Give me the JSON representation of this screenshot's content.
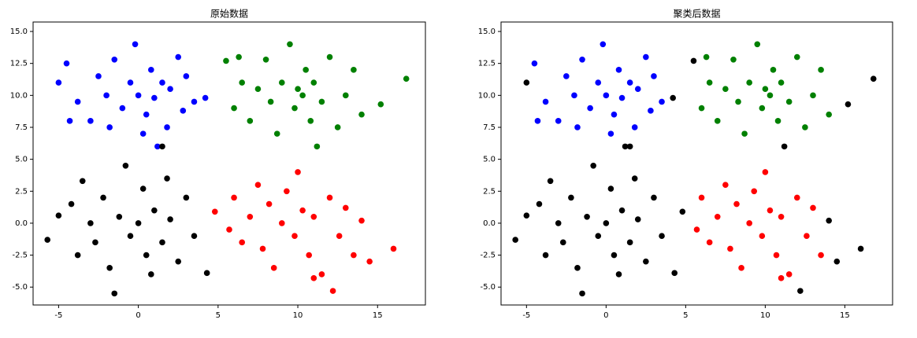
{
  "chart_data": [
    {
      "type": "scatter",
      "title": "原始数据",
      "xlim": [
        -6.6,
        18.0
      ],
      "ylim": [
        -6.4,
        15.74
      ],
      "xticks": [
        -5,
        0,
        5,
        10,
        15
      ],
      "yticks": [
        {
          "value": -5,
          "label": "-5.0"
        },
        {
          "value": -2.5,
          "label": "-2.5"
        },
        {
          "value": 0,
          "label": "0.0"
        },
        {
          "value": 2.5,
          "label": "2.5"
        },
        {
          "value": 5,
          "label": "5.0"
        },
        {
          "value": 7.5,
          "label": "7.5"
        },
        {
          "value": 10,
          "label": "10.0"
        },
        {
          "value": 12.5,
          "label": "12.5"
        },
        {
          "value": 15,
          "label": "15.0"
        }
      ],
      "series": [
        {
          "color": "#0000ff",
          "x": [
            -5,
            -4.5,
            -4.3,
            -3.8,
            -3,
            -2.5,
            -2,
            -1.5,
            -1,
            -0.5,
            0,
            0.5,
            0.8,
            1,
            1.5,
            1.8,
            2,
            2.5,
            2.8,
            3,
            3.5,
            1.2,
            -0.2,
            0.3,
            4.2,
            -1.8
          ],
          "y": [
            11,
            12.5,
            8,
            9.5,
            8,
            11.5,
            10,
            12.8,
            9,
            11,
            10,
            8.5,
            12,
            9.8,
            11,
            7.5,
            10.5,
            13,
            8.8,
            11.5,
            9.5,
            6,
            14,
            7,
            9.8,
            7.5
          ]
        },
        {
          "color": "#008000",
          "x": [
            5.5,
            6,
            6.5,
            7,
            7.5,
            8,
            8.3,
            8.7,
            9,
            9.5,
            9.8,
            10,
            10.5,
            10.8,
            11,
            11.5,
            12,
            12.5,
            13,
            13.5,
            14,
            15.2,
            16.8,
            11.2,
            6.3,
            10.3
          ],
          "y": [
            12.7,
            9,
            11,
            8,
            10.5,
            12.8,
            9.5,
            7,
            11,
            14,
            9,
            10.5,
            12,
            8,
            11,
            9.5,
            13,
            7.5,
            10,
            12,
            8.5,
            9.3,
            11.3,
            6,
            13,
            10
          ]
        },
        {
          "color": "#ff0000",
          "x": [
            4.8,
            5.7,
            6,
            6.5,
            7,
            7.5,
            7.8,
            8.2,
            8.5,
            9,
            9.3,
            9.8,
            10,
            10.3,
            10.7,
            11,
            11.5,
            12,
            12.2,
            12.6,
            13,
            13.5,
            14,
            14.5,
            16,
            11
          ],
          "y": [
            0.9,
            -0.5,
            2,
            -1.5,
            0.5,
            3,
            -2,
            1.5,
            -3.5,
            0,
            2.5,
            -1,
            4,
            1,
            -2.5,
            0.5,
            -4,
            2,
            -5.3,
            -1,
            1.2,
            -2.5,
            0.2,
            -3,
            -2,
            -4.3
          ]
        },
        {
          "color": "#000000",
          "x": [
            -5.7,
            -5,
            -4.2,
            -3.8,
            -3.5,
            -3,
            -2.7,
            -2.2,
            -1.8,
            -1.5,
            -1.2,
            -0.8,
            -0.5,
            0,
            0.3,
            0.5,
            0.8,
            1,
            1.5,
            1.8,
            2,
            2.5,
            3,
            3.5,
            4.3,
            1.5
          ],
          "y": [
            -1.3,
            0.6,
            1.5,
            -2.5,
            3.3,
            0,
            -1.5,
            2,
            -3.5,
            -5.5,
            0.5,
            4.5,
            -1,
            0,
            2.7,
            -2.5,
            -4,
            1,
            -1.5,
            3.5,
            0.3,
            -3,
            2,
            -1,
            -3.9,
            6
          ]
        }
      ]
    },
    {
      "type": "scatter",
      "title": "聚类后数据",
      "xlim": [
        -6.6,
        18.0
      ],
      "ylim": [
        -6.4,
        15.74
      ],
      "xticks": [
        -5,
        0,
        5,
        10,
        15
      ],
      "yticks": [
        {
          "value": -5,
          "label": "-5.0"
        },
        {
          "value": -2.5,
          "label": "-2.5"
        },
        {
          "value": 0,
          "label": "0.0"
        },
        {
          "value": 2.5,
          "label": "2.5"
        },
        {
          "value": 5,
          "label": "5.0"
        },
        {
          "value": 7.5,
          "label": "7.5"
        },
        {
          "value": 10,
          "label": "10.0"
        },
        {
          "value": 12.5,
          "label": "12.5"
        },
        {
          "value": 15,
          "label": "15.0"
        }
      ],
      "series": [
        {
          "color": "#0000ff",
          "x": [
            -4.5,
            -4.3,
            -3.8,
            -3,
            -2.5,
            -2,
            -1.5,
            -1,
            -0.5,
            0,
            0.5,
            0.8,
            1,
            1.5,
            1.8,
            2,
            2.5,
            2.8,
            3,
            3.5,
            -0.2,
            0.3,
            -1.8
          ],
          "y": [
            12.5,
            8,
            9.5,
            8,
            11.5,
            10,
            12.8,
            9,
            11,
            10,
            8.5,
            12,
            9.8,
            11,
            7.5,
            10.5,
            13,
            8.8,
            11.5,
            9.5,
            14,
            7,
            7.5
          ]
        },
        {
          "color": "#008000",
          "x": [
            6,
            6.5,
            7,
            7.5,
            8,
            8.3,
            8.7,
            9,
            9.5,
            9.8,
            10,
            10.5,
            10.8,
            11,
            11.5,
            12,
            12.5,
            13,
            13.5,
            14,
            6.3,
            10.3
          ],
          "y": [
            9,
            11,
            8,
            10.5,
            12.8,
            9.5,
            7,
            11,
            14,
            9,
            10.5,
            12,
            8,
            11,
            9.5,
            13,
            7.5,
            10,
            12,
            8.5,
            13,
            10
          ]
        },
        {
          "color": "#ff0000",
          "x": [
            5.7,
            6,
            6.5,
            7,
            7.5,
            7.8,
            8.2,
            8.5,
            9,
            9.3,
            9.8,
            10,
            10.3,
            10.7,
            11,
            11.5,
            12,
            12.6,
            13,
            13.5,
            11
          ],
          "y": [
            -0.5,
            2,
            -1.5,
            0.5,
            3,
            -2,
            1.5,
            -3.5,
            0,
            2.5,
            -1,
            4,
            1,
            -2.5,
            0.5,
            -4,
            2,
            -1,
            1.2,
            -2.5,
            -4.3
          ]
        },
        {
          "color": "#000000",
          "x": [
            -5.7,
            -5,
            -4.2,
            -3.8,
            -3.5,
            -3,
            -2.7,
            -2.2,
            -1.8,
            -1.5,
            -1.2,
            -0.8,
            -0.5,
            0,
            0.3,
            0.5,
            0.8,
            1,
            1.5,
            1.8,
            2,
            2.5,
            3,
            3.5,
            4.3,
            1.5,
            -5,
            4.2,
            1.2,
            5.5,
            15.2,
            16.8,
            11.2,
            4.8,
            12.2,
            14,
            14.5,
            16
          ],
          "y": [
            -1.3,
            0.6,
            1.5,
            -2.5,
            3.3,
            0,
            -1.5,
            2,
            -3.5,
            -5.5,
            0.5,
            4.5,
            -1,
            0,
            2.7,
            -2.5,
            -4,
            1,
            -1.5,
            3.5,
            0.3,
            -3,
            2,
            -1,
            -3.9,
            6,
            11,
            9.8,
            6,
            12.7,
            9.3,
            11.3,
            6,
            0.9,
            -5.3,
            0.2,
            -3,
            -2
          ]
        }
      ]
    }
  ]
}
